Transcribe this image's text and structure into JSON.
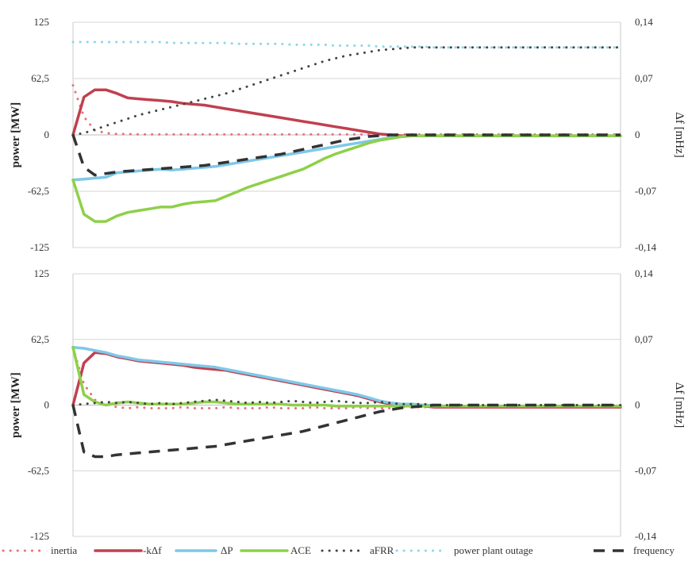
{
  "chart_data": [
    {
      "type": "line",
      "ylabel": "power [MW]",
      "y2label": "Δf [mHz]",
      "ylim": [
        -125,
        125
      ],
      "y2lim": [
        -0.14,
        0.14
      ],
      "yticks": [
        "125",
        "62,5",
        "0",
        "-62,5",
        "-125"
      ],
      "y2ticks": [
        "0,14",
        "0,07",
        "0",
        "-0,07",
        "-0,14"
      ],
      "grid": true,
      "x": [
        0,
        1,
        2,
        3,
        4,
        5,
        6,
        7,
        8,
        9,
        10,
        11,
        12,
        13,
        14,
        15,
        16,
        17,
        18,
        19,
        20,
        21,
        22,
        23,
        24,
        25,
        26,
        27,
        28,
        29,
        30,
        31,
        32,
        33,
        34,
        35,
        36,
        37,
        38,
        39,
        40,
        41,
        42,
        43,
        44,
        45,
        46,
        47,
        48,
        49,
        50
      ],
      "series": [
        {
          "name": "inertia",
          "axis": "left",
          "values": [
            55,
            20,
            5,
            2,
            1,
            1,
            0.5,
            0.5,
            0.5,
            0.5,
            0.5,
            0.5,
            0.5,
            0.5,
            0.5,
            0.5,
            0.5,
            0.5,
            0.5,
            0.5,
            0.5,
            0.5,
            0.5,
            0.5,
            0.5,
            0.5,
            0.5,
            0.5,
            0.5,
            0.5,
            0.5,
            0.5,
            0.5,
            0.5,
            0.5,
            0.5,
            0.5,
            0.5,
            0.5,
            0.5,
            0.5,
            0.5,
            0.5,
            0.5,
            0.5,
            0.5,
            0.5,
            0.5,
            0.5,
            0.5,
            0.5
          ]
        },
        {
          "name": "-kΔf",
          "axis": "left",
          "values": [
            0,
            42,
            50,
            50,
            46,
            41,
            40,
            39,
            38,
            37,
            35,
            34,
            33,
            31,
            29,
            27,
            25,
            23,
            21,
            19,
            17,
            15,
            13,
            11,
            9,
            7,
            5,
            3,
            1,
            0,
            -1,
            -1,
            -1,
            -1,
            -1,
            -1,
            -1,
            -1,
            -1,
            -1,
            -1,
            -1,
            -1,
            -1,
            -1,
            -1,
            -1,
            -1,
            -1,
            -1,
            -1
          ]
        },
        {
          "name": "ΔP",
          "axis": "left",
          "values": [
            -50,
            -49,
            -48,
            -47,
            -42,
            -41,
            -40,
            -39,
            -38,
            -39,
            -38,
            -37,
            -36,
            -35,
            -33,
            -31,
            -29,
            -27,
            -25,
            -23,
            -21,
            -19,
            -17,
            -15,
            -13,
            -11,
            -9,
            -7,
            -5,
            -3,
            -2,
            -1,
            -1,
            -1,
            -1,
            -1,
            -1,
            -1,
            -1,
            -1,
            -1,
            -1,
            -1,
            -1,
            -1,
            -1,
            -1,
            -1,
            -1,
            -1,
            -1
          ]
        },
        {
          "name": "ACE",
          "axis": "left",
          "values": [
            -50,
            -88,
            -96,
            -96,
            -90,
            -86,
            -84,
            -82,
            -80,
            -80,
            -77,
            -75,
            -74,
            -73,
            -68,
            -63,
            -58,
            -54,
            -50,
            -46,
            -42,
            -38,
            -32,
            -26,
            -21,
            -17,
            -13,
            -9,
            -6,
            -4,
            -2,
            -1,
            -1,
            -1,
            -1,
            -1,
            -1,
            -1,
            -1,
            -1,
            -1,
            -1,
            -1,
            -1,
            -1,
            -1,
            -1,
            -1,
            -1,
            -1,
            -1
          ]
        },
        {
          "name": "aFRR",
          "axis": "left",
          "values": [
            0,
            2,
            6,
            10,
            14,
            18,
            22,
            25,
            28,
            31,
            34,
            37,
            40,
            43,
            46,
            50,
            54,
            58,
            62,
            66,
            70,
            74,
            78,
            82,
            85,
            88,
            90,
            92,
            94,
            95,
            96,
            97,
            97,
            97,
            97,
            97,
            97,
            97,
            97,
            97,
            97,
            97,
            97,
            97,
            97,
            97,
            97,
            97,
            97,
            97,
            97
          ]
        },
        {
          "name": "power plant outage",
          "axis": "left",
          "values": [
            103,
            103,
            103,
            103,
            103,
            103,
            103,
            103,
            103,
            102,
            102,
            102,
            102,
            102,
            102,
            101,
            101,
            101,
            101,
            101,
            100,
            100,
            100,
            100,
            99,
            99,
            99,
            99,
            98,
            98,
            98,
            98,
            98,
            97,
            97,
            97,
            97,
            97,
            97,
            97,
            97,
            97,
            97,
            97,
            97,
            97,
            97,
            97,
            97,
            97,
            97
          ]
        },
        {
          "name": "frequency",
          "axis": "right",
          "values": [
            0,
            -0.04,
            -0.05,
            -0.048,
            -0.046,
            -0.045,
            -0.044,
            -0.043,
            -0.042,
            -0.041,
            -0.04,
            -0.039,
            -0.038,
            -0.036,
            -0.034,
            -0.032,
            -0.03,
            -0.028,
            -0.026,
            -0.024,
            -0.021,
            -0.018,
            -0.015,
            -0.012,
            -0.009,
            -0.006,
            -0.004,
            -0.002,
            -0.001,
            0,
            0,
            0,
            0,
            0,
            0,
            0,
            0,
            0,
            0,
            0,
            0,
            0,
            0,
            0,
            0,
            0,
            0,
            0,
            0,
            0,
            0
          ]
        }
      ]
    },
    {
      "type": "line",
      "ylabel": "power [MW]",
      "y2label": "Δf [mHz]",
      "ylim": [
        -125,
        125
      ],
      "y2lim": [
        -0.14,
        0.14
      ],
      "yticks": [
        "125",
        "62,5",
        "0",
        "-62,5",
        "-125"
      ],
      "y2ticks": [
        "0,14",
        "0,07",
        "0",
        "-0,07",
        "-0,14"
      ],
      "grid": true,
      "x": [
        0,
        1,
        2,
        3,
        4,
        5,
        6,
        7,
        8,
        9,
        10,
        11,
        12,
        13,
        14,
        15,
        16,
        17,
        18,
        19,
        20,
        21,
        22,
        23,
        24,
        25,
        26,
        27,
        28,
        29,
        30,
        31,
        32,
        33,
        34,
        35,
        36,
        37,
        38,
        39,
        40,
        41,
        42,
        43,
        44,
        45,
        46,
        47,
        48,
        49,
        50
      ],
      "series": [
        {
          "name": "inertia",
          "axis": "left",
          "values": [
            55,
            20,
            5,
            1,
            -2,
            -3,
            -2,
            -3,
            -3,
            -3,
            -2,
            -3,
            -3,
            -3,
            -2,
            -3,
            -3,
            -3,
            -2,
            -3,
            -3,
            -3,
            -2,
            -3,
            -3,
            -3,
            -2,
            -3,
            -3,
            -3,
            -2,
            -2,
            -2,
            -2,
            -1,
            -1,
            -1,
            -1,
            -1,
            -1,
            -1,
            -1,
            -1,
            -1,
            -1,
            -1,
            -1,
            -1,
            -1,
            -1,
            -1
          ]
        },
        {
          "name": "-kΔf",
          "axis": "left",
          "values": [
            0,
            40,
            50,
            49,
            46,
            44,
            42,
            41,
            40,
            39,
            38,
            36,
            35,
            34,
            33,
            31,
            29,
            27,
            25,
            23,
            21,
            19,
            17,
            15,
            13,
            11,
            9,
            6,
            3,
            1,
            0,
            -1,
            -1,
            -2,
            -2,
            -2,
            -2,
            -2,
            -2,
            -2,
            -2,
            -2,
            -2,
            -2,
            -2,
            -2,
            -2,
            -2,
            -2,
            -2,
            -2
          ]
        },
        {
          "name": "ΔP",
          "axis": "left",
          "values": [
            55,
            54,
            52,
            50,
            47,
            45,
            43,
            42,
            41,
            40,
            39,
            38,
            37,
            36,
            34,
            32,
            30,
            28,
            26,
            24,
            22,
            20,
            18,
            16,
            14,
            12,
            10,
            7,
            4,
            2,
            1,
            1,
            0,
            0,
            -1,
            -1,
            -1,
            -1,
            -1,
            -1,
            -1,
            -1,
            -1,
            -1,
            -1,
            -1,
            -1,
            -1,
            -1,
            -1,
            -1
          ]
        },
        {
          "name": "ACE",
          "axis": "left",
          "values": [
            55,
            10,
            3,
            0,
            2,
            3,
            2,
            1,
            1,
            1,
            1,
            2,
            3,
            3,
            2,
            1,
            1,
            1,
            1,
            1,
            0,
            0,
            0,
            0,
            -1,
            -1,
            -1,
            -1,
            -1,
            -1,
            -1,
            -1,
            -1,
            -1,
            -1,
            -1,
            -1,
            -1,
            -1,
            -1,
            -1,
            -1,
            -1,
            -1,
            -1,
            -1,
            -1,
            -1,
            -1,
            -1,
            -1
          ]
        },
        {
          "name": "aFRR",
          "axis": "left",
          "values": [
            0,
            1,
            2,
            3,
            2,
            3,
            2,
            1,
            2,
            1,
            2,
            3,
            4,
            5,
            4,
            3,
            2,
            3,
            2,
            3,
            4,
            3,
            2,
            3,
            4,
            3,
            2,
            2,
            3,
            2,
            1,
            1,
            1,
            0,
            0,
            0,
            0,
            0,
            0,
            0,
            0,
            0,
            0,
            0,
            0,
            0,
            0,
            0,
            0,
            0,
            0
          ]
        },
        {
          "name": "frequency",
          "axis": "right",
          "values": [
            0,
            -0.05,
            -0.055,
            -0.055,
            -0.053,
            -0.052,
            -0.051,
            -0.05,
            -0.049,
            -0.048,
            -0.047,
            -0.046,
            -0.045,
            -0.044,
            -0.042,
            -0.04,
            -0.038,
            -0.036,
            -0.034,
            -0.032,
            -0.03,
            -0.028,
            -0.025,
            -0.022,
            -0.019,
            -0.016,
            -0.013,
            -0.01,
            -0.007,
            -0.005,
            -0.003,
            -0.002,
            -0.001,
            0,
            0,
            0,
            0,
            0,
            0,
            0,
            0,
            0,
            0,
            0,
            0,
            0,
            0,
            0,
            0,
            0,
            0
          ]
        }
      ]
    }
  ],
  "legend": [
    {
      "name": "inertia",
      "color": "#e8707a",
      "style": "dotted"
    },
    {
      "name": "-kΔf",
      "color": "#c0404f",
      "style": "solid"
    },
    {
      "name": "ΔP",
      "color": "#7ec8e8",
      "style": "solid"
    },
    {
      "name": "ACE",
      "color": "#8ed04a",
      "style": "solid"
    },
    {
      "name": "aFRR",
      "color": "#444444",
      "style": "dotted"
    },
    {
      "name": "power plant outage",
      "color": "#8ad6e8",
      "style": "dotted"
    },
    {
      "name": "frequency",
      "color": "#333333",
      "style": "dashed"
    }
  ]
}
